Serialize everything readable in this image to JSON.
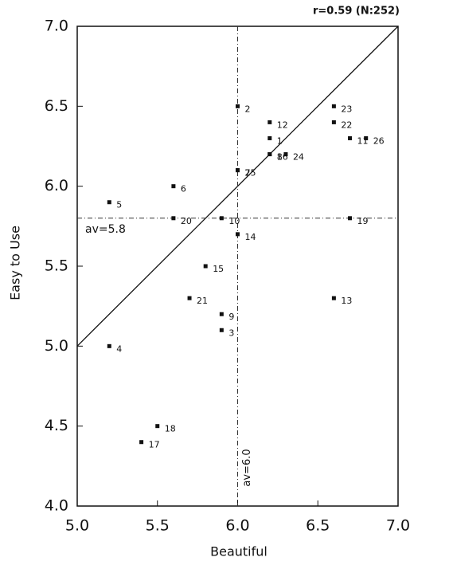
{
  "chart_data": {
    "type": "scatter",
    "annotation": "r=0.59 (N:252)",
    "xlabel": "Beautiful",
    "ylabel": "Easy to Use",
    "xlim": [
      5,
      7
    ],
    "ylim": [
      4,
      7
    ],
    "xticks": [
      {
        "value": 5,
        "label": "5.0"
      },
      5.5,
      {
        "value": 6,
        "label": "6.0"
      },
      6.5,
      {
        "value": 7,
        "label": "7.0"
      }
    ],
    "yticks": [
      {
        "value": 4,
        "label": "4.0"
      },
      4.5,
      {
        "value": 5,
        "label": "5.0"
      },
      5.5,
      {
        "value": 6,
        "label": "6.0"
      },
      6.5,
      {
        "value": 7,
        "label": "7.0"
      }
    ],
    "diagonal": true,
    "reference_lines": [
      {
        "axis": "y",
        "value": 5.8,
        "label": "av=5.8"
      },
      {
        "axis": "x",
        "value": 6.0,
        "label": "av=6.0"
      }
    ],
    "series": [
      {
        "color": "#111111",
        "labels": [
          "1",
          "2",
          "3",
          "4",
          "5",
          "6",
          "7",
          "8",
          "9",
          "10",
          "11",
          "12",
          "13",
          "14",
          "15",
          "16",
          "17",
          "18",
          "19",
          "20",
          "21",
          "22",
          "23",
          "24",
          "25",
          "26"
        ],
        "x": [
          6.2,
          6.0,
          5.9,
          5.2,
          5.2,
          5.6,
          6.0,
          6.2,
          5.9,
          5.9,
          6.7,
          6.2,
          6.6,
          6.0,
          5.8,
          6.2,
          5.4,
          5.5,
          6.7,
          5.6,
          5.7,
          6.6,
          6.6,
          6.3,
          6.0,
          6.8
        ],
        "values": [
          6.3,
          6.5,
          5.1,
          5.0,
          5.9,
          6.0,
          6.1,
          6.2,
          5.2,
          5.8,
          6.3,
          6.4,
          5.3,
          5.7,
          5.5,
          6.2,
          4.4,
          4.5,
          5.8,
          5.8,
          5.3,
          6.4,
          6.5,
          6.2,
          6.1,
          6.3
        ]
      }
    ]
  }
}
